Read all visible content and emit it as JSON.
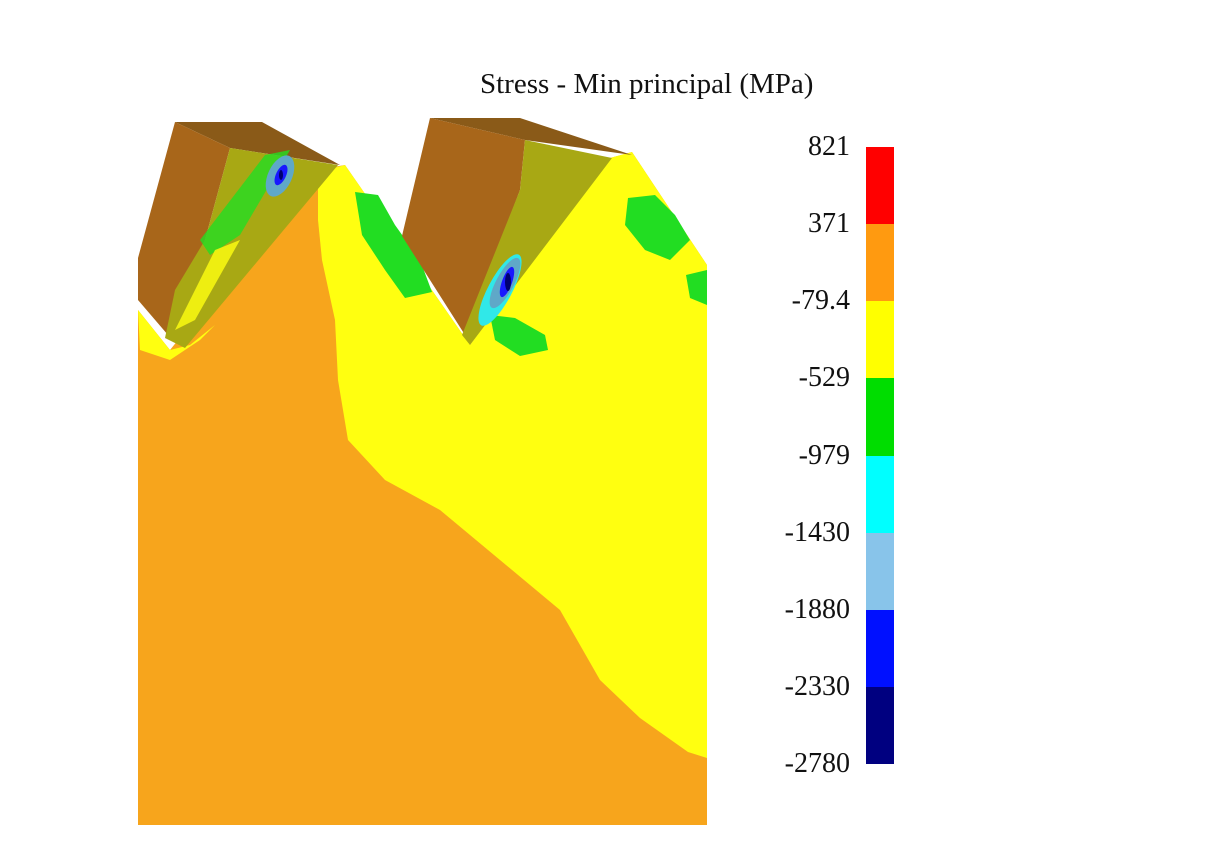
{
  "legend": {
    "title": "Stress - Min principal (MPa)",
    "ticks": [
      "821",
      "371",
      "-79.4",
      "-529",
      "-979",
      "-1430",
      "-1880",
      "-2330",
      "-2780"
    ],
    "colors": [
      "#ff0000",
      "#ff9a10",
      "#ffff00",
      "#00dd00",
      "#00ffff",
      "#88c4ea",
      "#0010ff",
      "#000080"
    ]
  },
  "palette": {
    "orange": "#f7a51c",
    "yellow": "#ffff10",
    "green": "#22dd22",
    "cutter_brown": "#a8661a",
    "cutter_top": "#8a5a18",
    "cutter_olive": "#a8a814",
    "blue": "#1818ff",
    "navy": "#00006e",
    "cyan": "#30e8e8",
    "lightblue": "#5fa8c8"
  }
}
